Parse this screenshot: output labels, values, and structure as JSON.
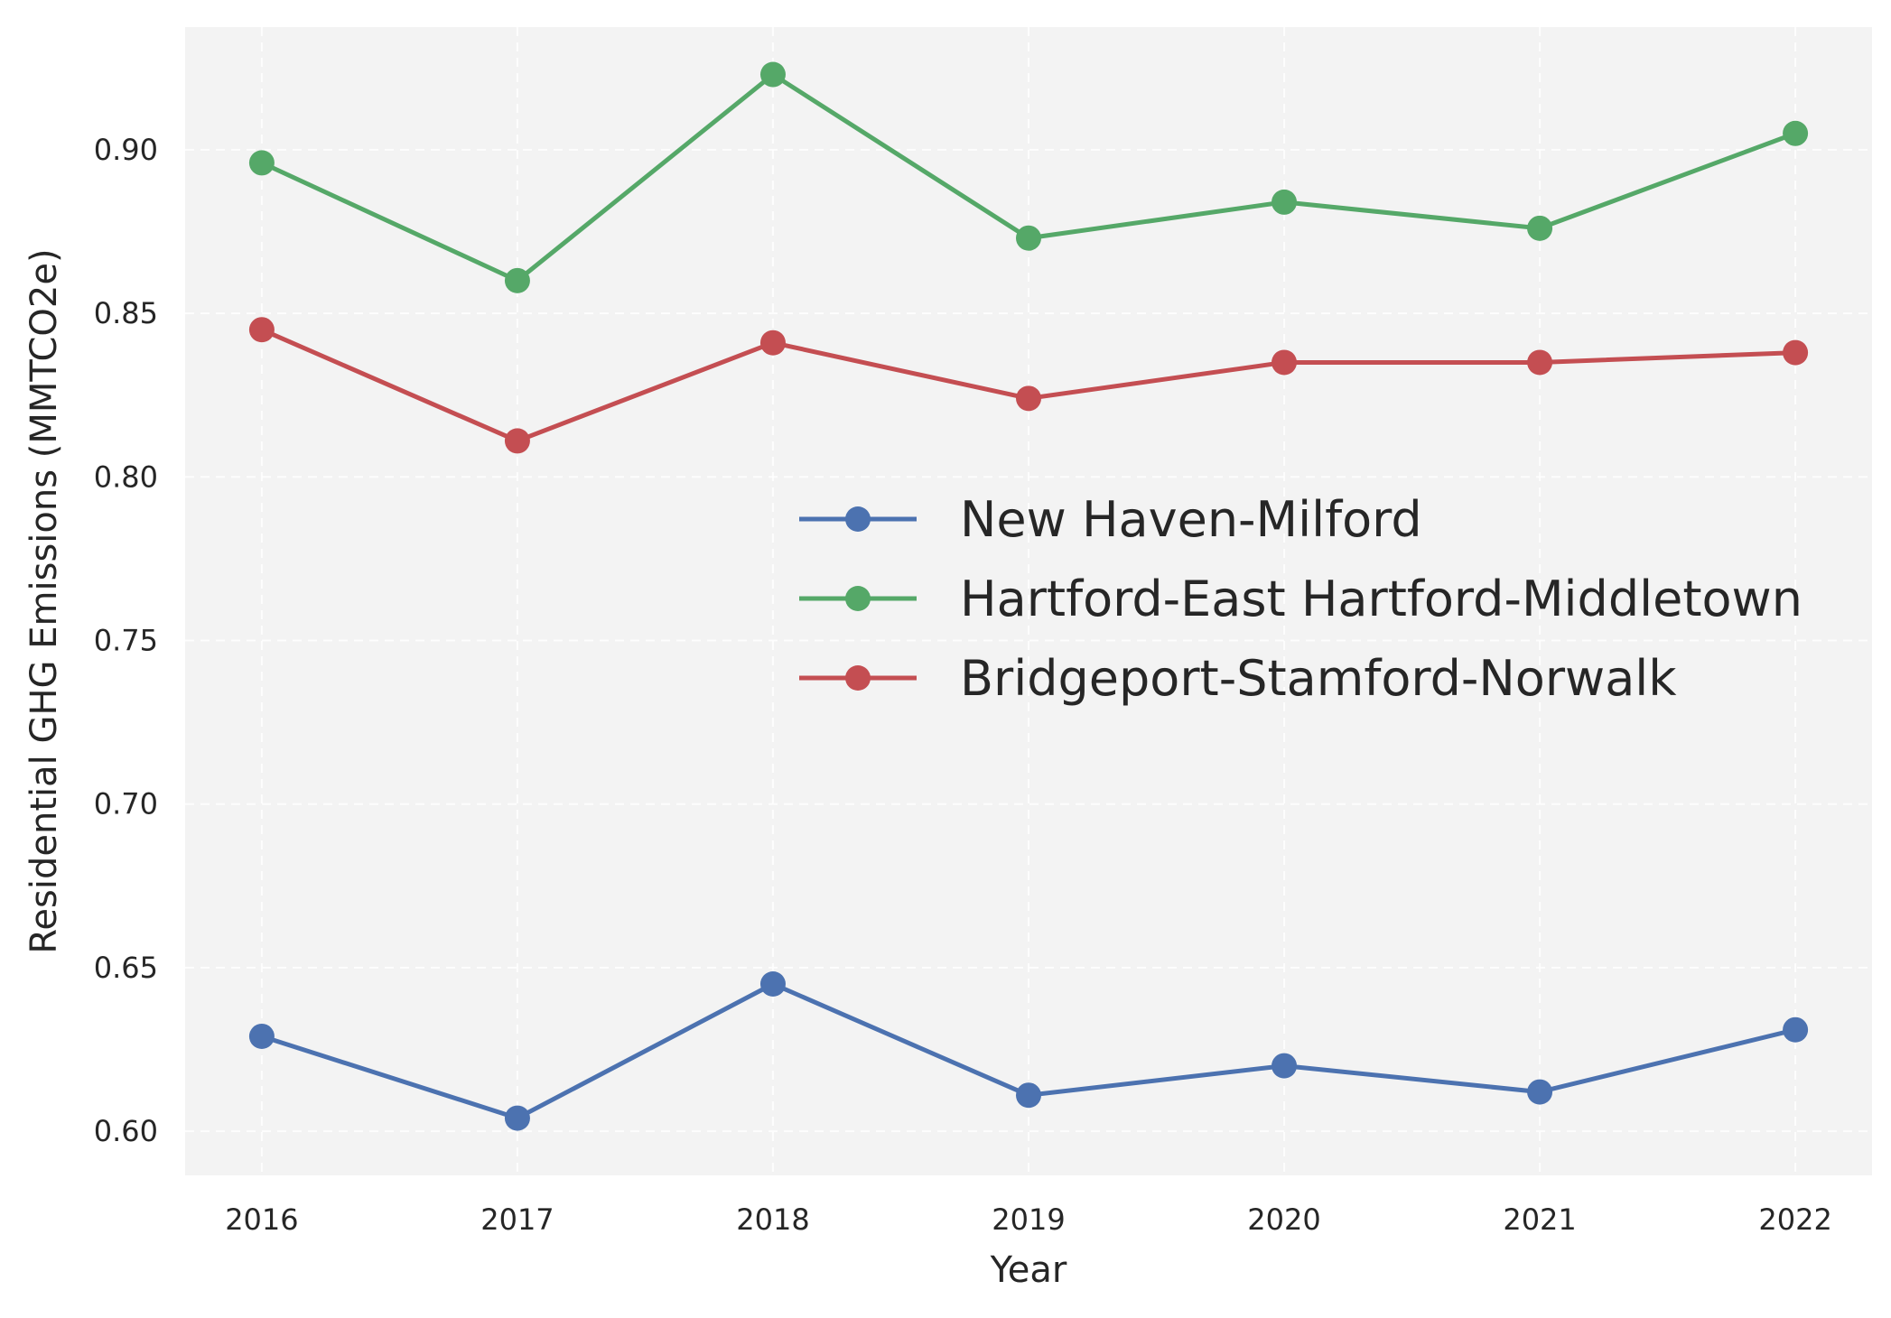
{
  "chart_data": {
    "type": "line",
    "title": "",
    "xlabel": "Year",
    "ylabel": "Residential GHG Emissions (MMTCO2e)",
    "categories": [
      "2016",
      "2017",
      "2018",
      "2019",
      "2020",
      "2021",
      "2022"
    ],
    "x": [
      2016,
      2017,
      2018,
      2019,
      2020,
      2021,
      2022
    ],
    "xlim": [
      2015.7,
      2022.3
    ],
    "ylim": [
      0.5865,
      0.9375
    ],
    "yticks": [
      0.6,
      0.65,
      0.7,
      0.75,
      0.8,
      0.85,
      0.9
    ],
    "ytick_labels": [
      "0.60",
      "0.65",
      "0.70",
      "0.75",
      "0.80",
      "0.85",
      "0.90"
    ],
    "grid": true,
    "legend_placement": "center-right",
    "series": [
      {
        "name": "New Haven-Milford",
        "color": "#4c72b0",
        "values": [
          0.629,
          0.604,
          0.645,
          0.611,
          0.62,
          0.612,
          0.631
        ]
      },
      {
        "name": "Hartford-East Hartford-Middletown",
        "color": "#55a868",
        "values": [
          0.896,
          0.86,
          0.923,
          0.873,
          0.884,
          0.876,
          0.905
        ]
      },
      {
        "name": "Bridgeport-Stamford-Norwalk",
        "color": "#c44e52",
        "values": [
          0.845,
          0.811,
          0.841,
          0.824,
          0.835,
          0.835,
          0.838
        ]
      }
    ]
  }
}
